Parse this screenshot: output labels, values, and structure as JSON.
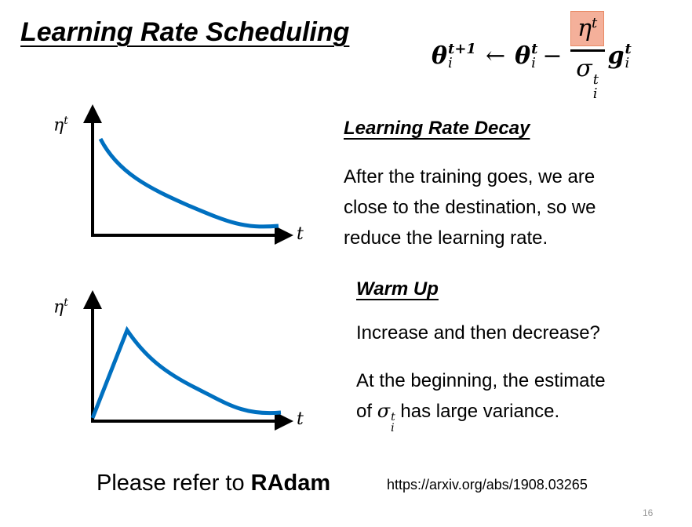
{
  "title": "Learning Rate Scheduling",
  "formula": {
    "lhs": "θ",
    "lhs_sup": "t+1",
    "lhs_sub": "i",
    "arrow": "←",
    "theta": "θ",
    "theta_sup": "t",
    "theta_sub": "i",
    "minus": "−",
    "num": "η",
    "num_sup": "t",
    "den": "σ",
    "den_sup": "t",
    "den_sub": "i",
    "g": "g",
    "g_sup": "t",
    "g_sub": "i",
    "highlight_color": "#f4b09a"
  },
  "graph1": {
    "ylabel": "η",
    "ylabel_sup": "t",
    "xlabel": "t"
  },
  "graph2": {
    "ylabel": "η",
    "ylabel_sup": "t",
    "xlabel": "t"
  },
  "decay": {
    "heading": "Learning Rate Decay",
    "lines": [
      "After the training goes, we are",
      "close to the destination, so we",
      "reduce the learning rate."
    ]
  },
  "warmup": {
    "heading": "Warm Up",
    "line1": "Increase and then decrease?",
    "line2": "At the beginning, the estimate",
    "line3_pre": "of ",
    "sigma": "σ",
    "sigma_sup": "t",
    "sigma_sub": "i",
    "line3_post": " has large variance."
  },
  "footer": {
    "refer": "Please refer to ",
    "radam": "RAdam",
    "url": "https://arxiv.org/abs/1908.03265",
    "page": "16"
  },
  "curve_color": "#0070c0"
}
